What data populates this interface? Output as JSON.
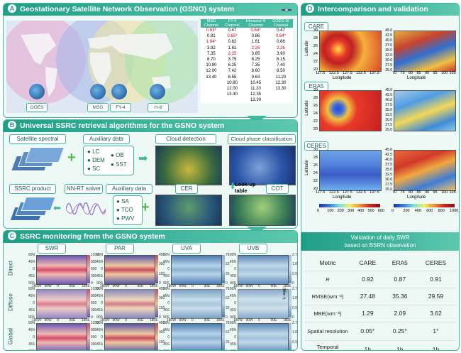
{
  "panelA": {
    "letter": "A",
    "title": "Geostationary Satellite Network Observation (GSNO) system",
    "satellites": [
      "GOES",
      "MSG",
      "FY-4",
      "H-8"
    ],
    "table": {
      "headers": [
        "MSG Channel",
        "FY-4 Channel",
        "Himawari 8 Channel",
        "GOES-16 Channel"
      ],
      "rows": [
        [
          "0.63*",
          "0.47",
          "0.64*",
          "0.47"
        ],
        [
          "0.81",
          "0.65*",
          "0.86",
          "0.64*"
        ],
        [
          "1.64*",
          "0.82",
          "1.61",
          "0.86"
        ],
        [
          "3.92",
          "1.61",
          "2.26",
          "2.26"
        ],
        [
          "7.35",
          "2.25",
          "3.85",
          "3.90"
        ],
        [
          "8.70",
          "3.75",
          "6.25",
          "6.15"
        ],
        [
          "10.80",
          "6.25",
          "7.35",
          "7.40"
        ],
        [
          "12.00",
          "7.42",
          "8.60",
          "8.50"
        ],
        [
          "13.40",
          "8.55",
          "9.63",
          "11.20"
        ],
        [
          "",
          "10.80",
          "10.45",
          "12.30"
        ],
        [
          "",
          "12.00",
          "11.20",
          "13.30"
        ],
        [
          "",
          "13.30",
          "12.35",
          ""
        ],
        [
          "",
          "",
          "13.30",
          ""
        ]
      ]
    }
  },
  "panelB": {
    "letter": "B",
    "title": "Universal SSRC retrieval algorithms for the GSNO system",
    "satellite_spectral": "Satellite spectral",
    "auxiliary_data": "Auxiliary data",
    "aux1": [
      "LC",
      "DEM",
      "SC"
    ],
    "aux2": [
      "OB",
      "SST"
    ],
    "cloud_detection": "Cloud detection",
    "cloud_phase": "Cloud phase classification",
    "lookup": "Look-up table",
    "cer": "CER",
    "cot": "COT",
    "ssrc_product": "SSRC product",
    "nnrt": "NN-RT solver",
    "auxiliary_data2": "Auxiliary data",
    "aux3": [
      "SA",
      "TCO",
      "PWV"
    ]
  },
  "panelC": {
    "letter": "C",
    "title": "SSRC monitoring from the GSNO system",
    "cols": [
      "SWR",
      "PAR",
      "UVA",
      "UVB"
    ],
    "rows": [
      "Direct",
      "Diffuse",
      "Global"
    ],
    "lat_ticks": [
      "90N",
      "45N",
      "0",
      "45S",
      "90S"
    ],
    "lon_ticks": [
      "180W",
      "90W",
      "0",
      "90E",
      "180E"
    ],
    "colorbar_ticks": [
      [
        "1200",
        "900",
        "600",
        "300",
        "0"
      ],
      [
        "450",
        "300",
        "150",
        "0"
      ],
      [
        "78",
        "52",
        "26",
        "0"
      ],
      [
        "2.7",
        "1.8",
        "0.9",
        "0"
      ]
    ],
    "unit": "(Wm⁻²)"
  },
  "panelD": {
    "letter": "D",
    "title": "Intercomparison and validation",
    "products": [
      "CARE",
      "ERA5",
      "CERES"
    ],
    "left_x_ticks": [
      "117.5",
      "122.5",
      "127.5",
      "132.5",
      "137.5"
    ],
    "left_y_ticks": [
      "30",
      "28",
      "26",
      "24",
      "22",
      "20"
    ],
    "right_x_ticks": [
      "70",
      "75",
      "80",
      "85",
      "90",
      "95",
      "100",
      "105"
    ],
    "right_y_ticks": [
      "45.0",
      "42.5",
      "40.0",
      "37.5",
      "35.0",
      "32.5",
      "30.0",
      "27.5",
      "25.0"
    ],
    "xlabel": "Longitude",
    "ylabel": "Latitude",
    "cbar_left": [
      "0",
      "100",
      "200",
      "300",
      "400",
      "500",
      "600"
    ],
    "cbar_right": [
      "0",
      "200",
      "400",
      "600",
      "800",
      "1000"
    ]
  },
  "validation": {
    "title_line1": "Validation of daily SWR",
    "title_line2": "based on BSRN observation",
    "headers": [
      "Metric",
      "CARE",
      "ERA5",
      "CERES"
    ],
    "rows": [
      [
        "R",
        "0.92",
        "0.87",
        "0.91"
      ],
      [
        "RMSE(wm⁻²)",
        "27.48",
        "35.36",
        "29.59"
      ],
      [
        "MBE(wm⁻²)",
        "1.29",
        "2.09",
        "3.62"
      ],
      [
        "Spatial resolution",
        "0.05°",
        "0.25°",
        "1°"
      ],
      [
        "Temporal resolution",
        "1h",
        "1h",
        "1h"
      ]
    ]
  }
}
